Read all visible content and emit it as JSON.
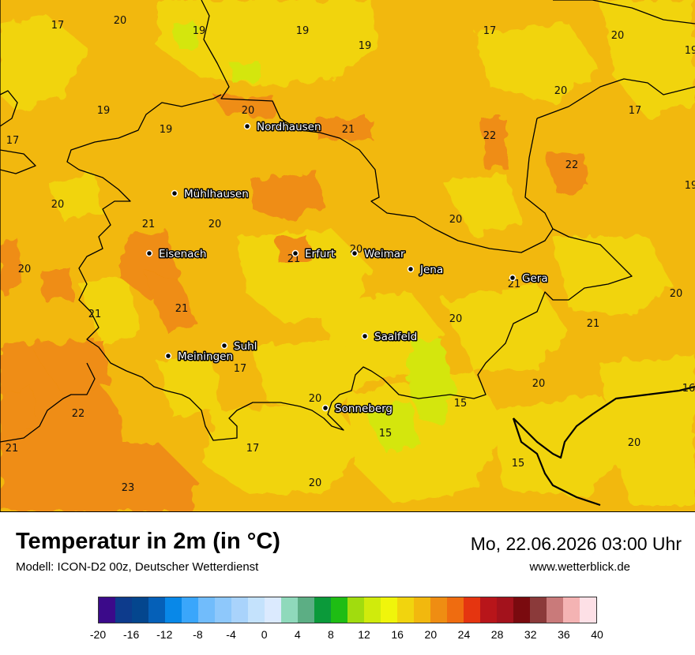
{
  "title": "Temperatur in 2m (in °C)",
  "model": "Modell: ICON-D2 00z, Deutscher Wetterdienst",
  "datetime": "Mo, 22.06.2026 03:00 Uhr",
  "website": "www.wetterblick.de",
  "map_colors": {
    "base": "#f2b80e",
    "light": "#f1d40e",
    "warm": "#ef8d12",
    "cool": "#d4e60d"
  },
  "cities": [
    {
      "name": "Nordhausen"
    },
    {
      "name": "Mühlhausen"
    },
    {
      "name": "Eisenach"
    },
    {
      "name": "Erfurt"
    },
    {
      "name": "Weimar"
    },
    {
      "name": "Jena"
    },
    {
      "name": "Gera"
    },
    {
      "name": "Suhl"
    },
    {
      "name": "Meiningen"
    },
    {
      "name": "Saalfeld"
    },
    {
      "name": "Sonneberg"
    }
  ],
  "values": [
    "17",
    "20",
    "19",
    "19",
    "19",
    "17",
    "20",
    "19",
    "20",
    "17",
    "19",
    "20",
    "19",
    "21",
    "22",
    "17",
    "22",
    "19",
    "20",
    "20",
    "21",
    "20",
    "20",
    "21",
    "20",
    "21",
    "21",
    "21",
    "20",
    "21",
    "20",
    "17",
    "20",
    "16",
    "22",
    "15",
    "20",
    "15",
    "21",
    "17",
    "15",
    "20",
    "23",
    "20"
  ],
  "legend": {
    "colors": [
      "#3b0a8a",
      "#0d3b8c",
      "#04468e",
      "#0560b8",
      "#0888e8",
      "#3aa6fb",
      "#71bcfb",
      "#8ec8fb",
      "#a9d3fb",
      "#c4e2fc",
      "#dbeafe",
      "#8fd9bb",
      "#5cae84",
      "#0b9a3a",
      "#1ebd14",
      "#a1dc0e",
      "#d0eb0c",
      "#f0f50b",
      "#f1d40e",
      "#f2b80e",
      "#ef8d12",
      "#ef6c10",
      "#e53510",
      "#b8151a",
      "#a3121c",
      "#7a0a0f",
      "#8b3a3a",
      "#c97a7a",
      "#f4b3b3",
      "#fde0e6"
    ],
    "labels": [
      "-20",
      "-16",
      "-12",
      "-8",
      "-4",
      "0",
      "4",
      "8",
      "12",
      "16",
      "20",
      "24",
      "28",
      "32",
      "36",
      "40"
    ]
  }
}
